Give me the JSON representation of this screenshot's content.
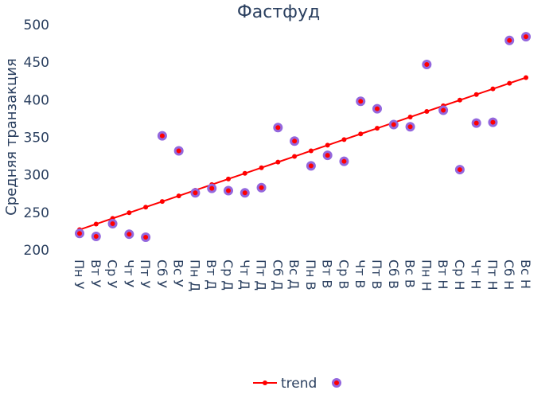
{
  "chart_data": {
    "type": "scatter",
    "title": "Фастфуд",
    "xlabel": "",
    "ylabel": "Средняя транзакция",
    "ylim": [
      200,
      500
    ],
    "yticks": [
      200,
      250,
      300,
      350,
      400,
      450,
      500
    ],
    "grid": false,
    "legend_position": "bottom-center",
    "categories": [
      "Пн У",
      "Вт У",
      "Ср У",
      "Чт У",
      "Пт У",
      "Сб У",
      "Вс У",
      "Пн Д",
      "Вт Д",
      "Ср Д",
      "Чт Д",
      "Пт Д",
      "Сб Д",
      "Вс Д",
      "Пн В",
      "Вт В",
      "Ср В",
      "Чт В",
      "Пт В",
      "Сб В",
      "Вс В",
      "Пн Н",
      "Вт Н",
      "Ср Н",
      "Чт Н",
      "Пт Н",
      "Сб Н",
      "Вс Н"
    ],
    "series": [
      {
        "name": "trend",
        "mode": "lines+markers",
        "color": "#ff0000",
        "values": [
          227,
          234.5,
          242,
          249.5,
          257,
          264.5,
          272,
          279.5,
          287,
          294.5,
          302,
          309.5,
          317,
          324.5,
          332,
          339.5,
          347,
          354.5,
          362,
          369.5,
          377,
          384.5,
          392,
          399.5,
          407,
          414.5,
          422,
          429.5
        ]
      },
      {
        "name": "",
        "mode": "markers",
        "color": "#ff0000",
        "outline": "#9467dd",
        "values": [
          222,
          218,
          235,
          221,
          217,
          352,
          332,
          276,
          282,
          279,
          276,
          283,
          363,
          345,
          312,
          326,
          318,
          398,
          388,
          367,
          364,
          447,
          386,
          307,
          369,
          370,
          479,
          484
        ]
      }
    ]
  }
}
